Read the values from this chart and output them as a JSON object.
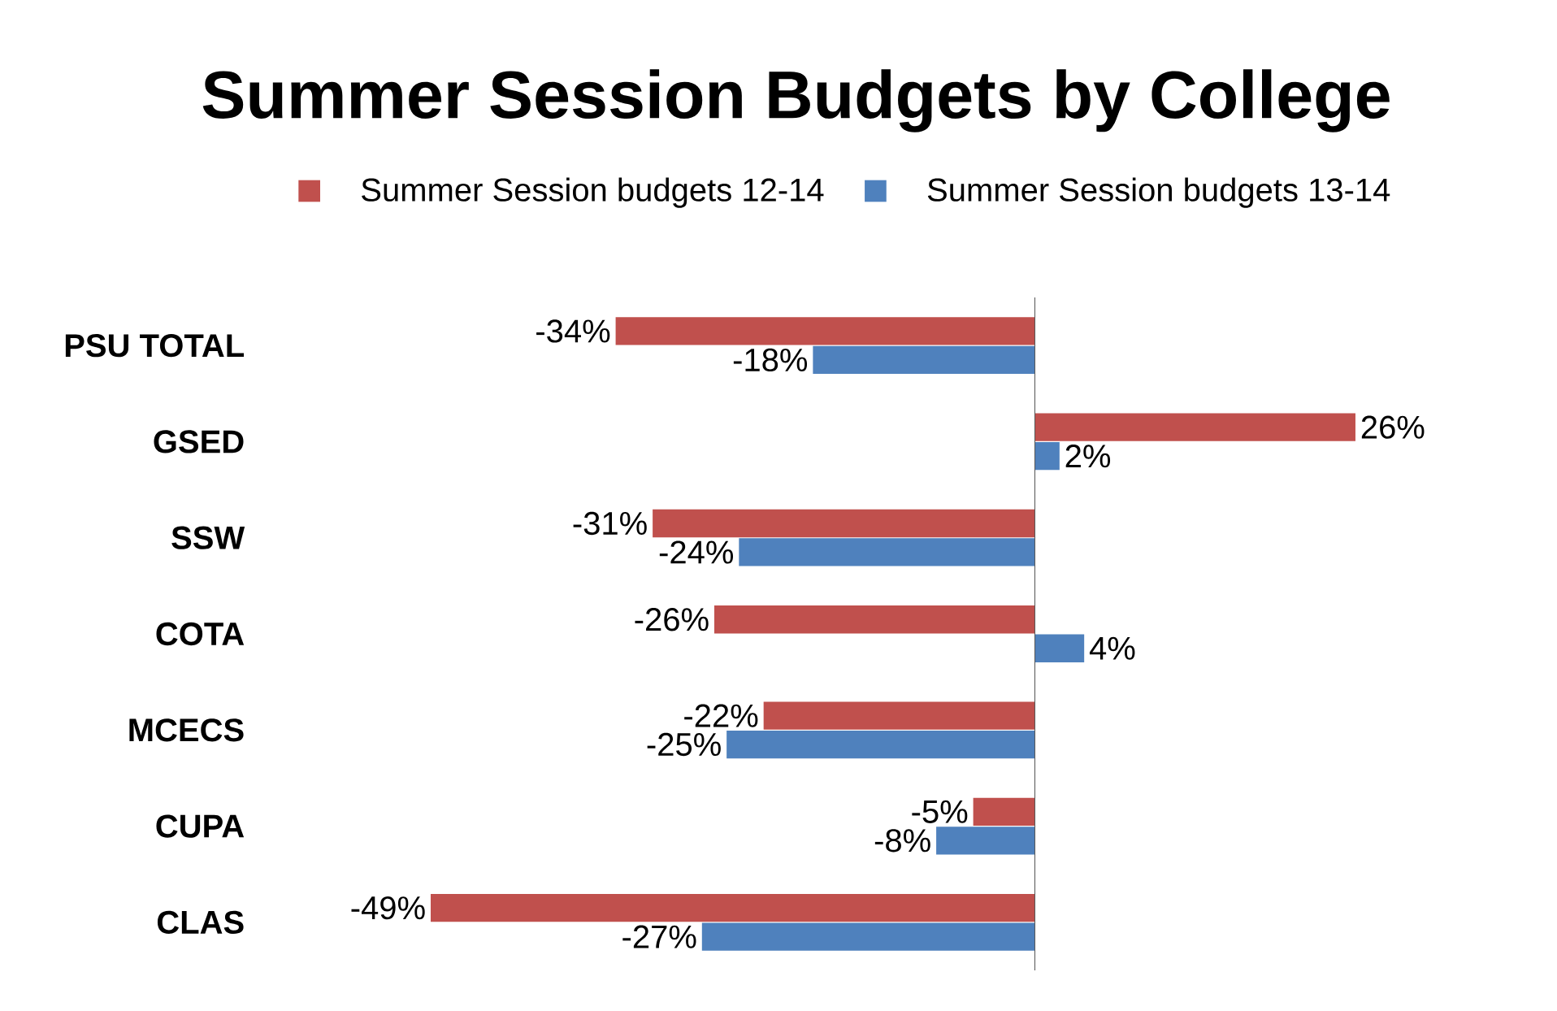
{
  "chart_data": {
    "type": "bar",
    "orientation": "horizontal",
    "title": "Summer Session Budgets by College",
    "legend": "top",
    "categories": [
      "PSU TOTAL",
      "GSED",
      "SSW",
      "COTA",
      "MCECS",
      "CUPA",
      "CLAS"
    ],
    "series": [
      {
        "name": "Summer Session budgets 12-14",
        "color": "#c0504d",
        "values": [
          -34,
          26,
          -31,
          -26,
          -22,
          -5,
          -49
        ],
        "value_labels": [
          "-34%",
          "26%",
          "-31%",
          "-26%",
          "-22%",
          "-5%",
          "-49%"
        ]
      },
      {
        "name": "Summer Session budgets 13-14",
        "color": "#4f81bd",
        "values": [
          -18,
          2,
          -24,
          4,
          -25,
          -8,
          -27
        ],
        "value_labels": [
          "-18%",
          "2%",
          "-24%",
          "4%",
          "-25%",
          "-8%",
          "-27%"
        ]
      }
    ]
  }
}
